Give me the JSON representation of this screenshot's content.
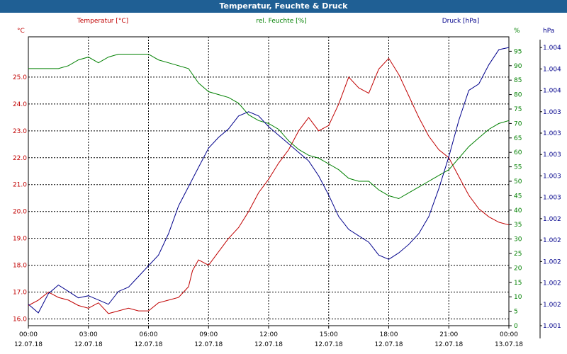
{
  "window": {
    "title": "Temperatur, Feuchte & Druck"
  },
  "chart_data": {
    "type": "line",
    "grid": true,
    "x": {
      "range": [
        "12.07.18 00:00",
        "13.07.18 00:00"
      ],
      "tick_labels": [
        {
          "time": "00:00",
          "date": "12.07.18"
        },
        {
          "time": "03:00",
          "date": "12.07.18"
        },
        {
          "time": "06:00",
          "date": "12.07.18"
        },
        {
          "time": "09:00",
          "date": "12.07.18"
        },
        {
          "time": "12:00",
          "date": "12.07.18"
        },
        {
          "time": "15:00",
          "date": "12.07.18"
        },
        {
          "time": "18:00",
          "date": "12.07.18"
        },
        {
          "time": "21:00",
          "date": "12.07.18"
        },
        {
          "time": "00:00",
          "date": "13.07.18"
        }
      ]
    },
    "axes": {
      "temperature": {
        "label": "Temperatur [°C]",
        "unit": "°C",
        "color": "#c00000",
        "side": "left",
        "range": [
          15.75,
          26.5
        ],
        "ticks": [
          "16.0",
          "17.0",
          "18.0",
          "19.0",
          "20.0",
          "21.0",
          "22.0",
          "23.0",
          "24.0",
          "25.0"
        ]
      },
      "humidity": {
        "label": "rel. Feuchte [%]",
        "unit": "%",
        "color": "#008000",
        "side": "right",
        "range": [
          0,
          100
        ],
        "ticks": [
          "0",
          "5",
          "10",
          "15",
          "20",
          "25",
          "30",
          "35",
          "40",
          "45",
          "50",
          "55",
          "60",
          "65",
          "70",
          "75",
          "80",
          "85",
          "90",
          "95"
        ]
      },
      "pressure": {
        "label": "Druck [hPa]",
        "unit": "hPa",
        "color": "#00008b",
        "side": "right",
        "range": [
          0,
          13.5
        ],
        "ticks": [
          "1.001",
          "1.002",
          "1.002",
          "1.002",
          "1.002",
          "1.002",
          "1.003",
          "1.003",
          "1.003",
          "1.003",
          "1.003",
          "1.004",
          "1.004",
          "1.004"
        ]
      }
    },
    "series": [
      {
        "name": "Temperatur [°C]",
        "axis": "temperature",
        "color": "#c00000",
        "values": [
          [
            0,
            16.5
          ],
          [
            0.5,
            16.7
          ],
          [
            1,
            17.0
          ],
          [
            1.5,
            16.8
          ],
          [
            2,
            16.7
          ],
          [
            2.5,
            16.5
          ],
          [
            3,
            16.4
          ],
          [
            3.5,
            16.6
          ],
          [
            4,
            16.2
          ],
          [
            4.5,
            16.3
          ],
          [
            5,
            16.4
          ],
          [
            5.5,
            16.3
          ],
          [
            6,
            16.3
          ],
          [
            6.5,
            16.6
          ],
          [
            7,
            16.7
          ],
          [
            7.5,
            16.8
          ],
          [
            8,
            17.2
          ],
          [
            8.2,
            17.8
          ],
          [
            8.5,
            18.2
          ],
          [
            9,
            18.0
          ],
          [
            9.5,
            18.5
          ],
          [
            10,
            19.0
          ],
          [
            10.5,
            19.4
          ],
          [
            11,
            20.0
          ],
          [
            11.5,
            20.7
          ],
          [
            12,
            21.2
          ],
          [
            12.5,
            21.8
          ],
          [
            13,
            22.3
          ],
          [
            13.5,
            23.0
          ],
          [
            14,
            23.5
          ],
          [
            14.5,
            23.0
          ],
          [
            15,
            23.2
          ],
          [
            15.5,
            24.0
          ],
          [
            16,
            25.0
          ],
          [
            16.5,
            24.6
          ],
          [
            17,
            24.4
          ],
          [
            17.5,
            25.3
          ],
          [
            18,
            25.7
          ],
          [
            18.5,
            25.1
          ],
          [
            19,
            24.3
          ],
          [
            19.5,
            23.5
          ],
          [
            20,
            22.8
          ],
          [
            20.5,
            22.3
          ],
          [
            21,
            22.0
          ],
          [
            21.5,
            21.3
          ],
          [
            22,
            20.6
          ],
          [
            22.5,
            20.1
          ],
          [
            23,
            19.8
          ],
          [
            23.5,
            19.6
          ],
          [
            24,
            19.5
          ]
        ]
      },
      {
        "name": "rel. Feuchte [%]",
        "axis": "humidity",
        "color": "#008000",
        "values": [
          [
            0,
            89
          ],
          [
            0.5,
            89
          ],
          [
            1,
            89
          ],
          [
            1.5,
            89
          ],
          [
            2,
            90
          ],
          [
            2.5,
            92
          ],
          [
            3,
            93
          ],
          [
            3.5,
            91
          ],
          [
            4,
            93
          ],
          [
            4.5,
            94
          ],
          [
            5,
            94
          ],
          [
            5.5,
            94
          ],
          [
            6,
            94
          ],
          [
            6.5,
            92
          ],
          [
            7,
            91
          ],
          [
            7.5,
            90
          ],
          [
            8,
            89
          ],
          [
            8.5,
            84
          ],
          [
            9,
            81
          ],
          [
            9.5,
            80
          ],
          [
            10,
            79
          ],
          [
            10.5,
            77
          ],
          [
            11,
            73
          ],
          [
            11.5,
            71
          ],
          [
            12,
            70
          ],
          [
            12.5,
            68
          ],
          [
            13,
            64
          ],
          [
            13.5,
            61
          ],
          [
            14,
            59
          ],
          [
            14.5,
            58
          ],
          [
            15,
            56
          ],
          [
            15.5,
            54
          ],
          [
            16,
            51
          ],
          [
            16.5,
            50
          ],
          [
            17,
            50
          ],
          [
            17.5,
            47
          ],
          [
            18,
            45
          ],
          [
            18.5,
            44
          ],
          [
            19,
            46
          ],
          [
            19.5,
            48
          ],
          [
            20,
            50
          ],
          [
            20.5,
            52
          ],
          [
            21,
            54
          ],
          [
            21.5,
            58
          ],
          [
            22,
            62
          ],
          [
            22.5,
            65
          ],
          [
            23,
            68
          ],
          [
            23.5,
            70
          ],
          [
            24,
            71
          ]
        ]
      },
      {
        "name": "Druck [hPa]",
        "axis": "pressure",
        "color": "#00008b",
        "values": [
          [
            0,
            1.0
          ],
          [
            0.5,
            0.6
          ],
          [
            1,
            1.5
          ],
          [
            1.5,
            1.9
          ],
          [
            2,
            1.6
          ],
          [
            2.5,
            1.3
          ],
          [
            3,
            1.4
          ],
          [
            3.5,
            1.2
          ],
          [
            4,
            1.0
          ],
          [
            4.5,
            1.6
          ],
          [
            5,
            1.8
          ],
          [
            5.5,
            2.3
          ],
          [
            6,
            2.8
          ],
          [
            6.5,
            3.3
          ],
          [
            7,
            4.3
          ],
          [
            7.5,
            5.6
          ],
          [
            8,
            6.5
          ],
          [
            8.5,
            7.4
          ],
          [
            9,
            8.3
          ],
          [
            9.5,
            8.8
          ],
          [
            10,
            9.2
          ],
          [
            10.5,
            9.8
          ],
          [
            11,
            10.0
          ],
          [
            11.5,
            9.8
          ],
          [
            12,
            9.3
          ],
          [
            12.5,
            8.9
          ],
          [
            13,
            8.5
          ],
          [
            13.5,
            8.1
          ],
          [
            14,
            7.7
          ],
          [
            14.5,
            7.0
          ],
          [
            15,
            6.1
          ],
          [
            15.5,
            5.1
          ],
          [
            16,
            4.5
          ],
          [
            16.5,
            4.2
          ],
          [
            17,
            3.9
          ],
          [
            17.5,
            3.3
          ],
          [
            18,
            3.1
          ],
          [
            18.5,
            3.4
          ],
          [
            19,
            3.8
          ],
          [
            19.5,
            4.3
          ],
          [
            20,
            5.1
          ],
          [
            20.5,
            6.4
          ],
          [
            21,
            7.9
          ],
          [
            21.5,
            9.6
          ],
          [
            22,
            11.0
          ],
          [
            22.5,
            11.3
          ],
          [
            23,
            12.2
          ],
          [
            23.5,
            12.9
          ],
          [
            24,
            13.0
          ]
        ]
      }
    ]
  }
}
